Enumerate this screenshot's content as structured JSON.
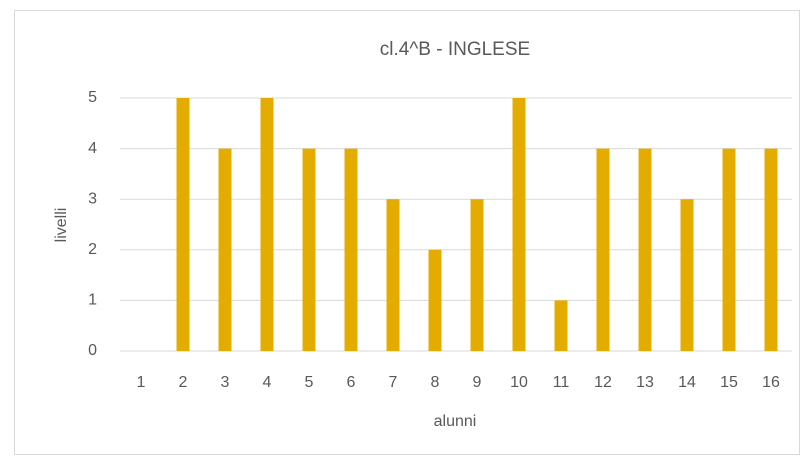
{
  "chart_data": {
    "type": "bar",
    "title": "cl.4^B - INGLESE",
    "x_label": "alunni",
    "y_label": "livelli",
    "categories": [
      "1",
      "2",
      "3",
      "4",
      "5",
      "6",
      "7",
      "8",
      "9",
      "10",
      "11",
      "12",
      "13",
      "14",
      "15",
      "16"
    ],
    "values": [
      0,
      5,
      4,
      5,
      4,
      4,
      3,
      2,
      3,
      5,
      1,
      4,
      4,
      3,
      4,
      4
    ],
    "color": "#e5ac00",
    "ylim": [
      0,
      5
    ],
    "yticks": [
      0,
      1,
      2,
      3,
      4,
      5
    ],
    "grid": true
  }
}
